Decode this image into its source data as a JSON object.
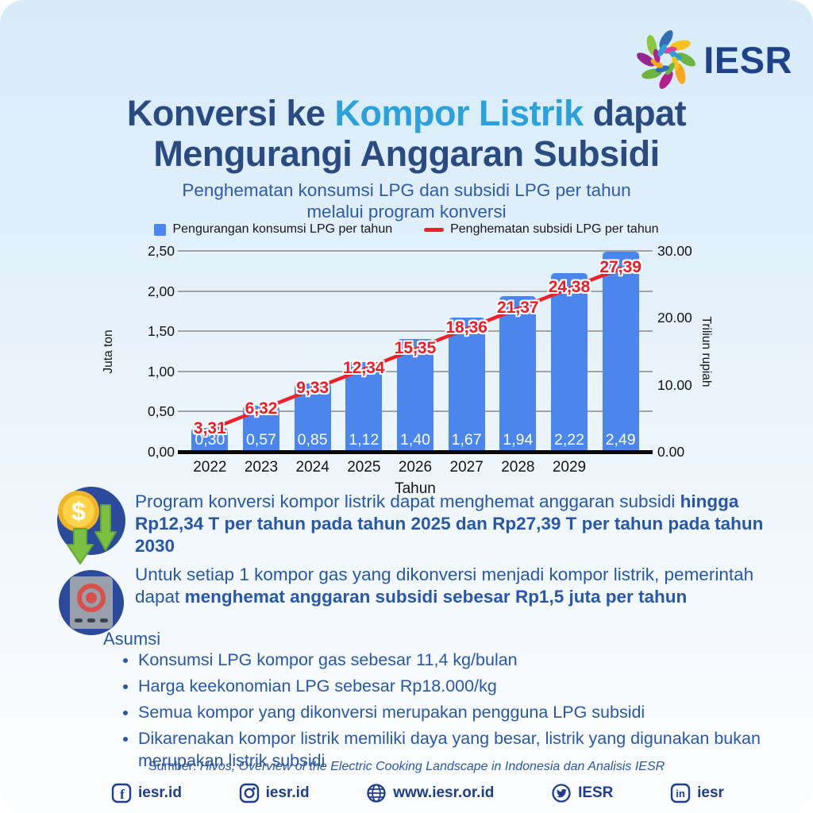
{
  "logo": {
    "name": "IESR"
  },
  "header": {
    "title_line1_pre": "Konversi ke ",
    "title_line1_highlight": "Kompor Listrik",
    "title_line1_post": " dapat",
    "title_line2": "Mengurangi Anggaran Subsidi",
    "subtitle_line1": "Penghematan konsumsi LPG dan subsidi LPG per tahun",
    "subtitle_line2": "melalui program konversi"
  },
  "chart_data": {
    "type": "bar+line",
    "categories": [
      "2022",
      "2023",
      "2024",
      "2025",
      "2026",
      "2027",
      "2028",
      "2029",
      ""
    ],
    "series": [
      {
        "name": "Pengurangan konsumsi LPG per tahun",
        "type": "bar",
        "axis": "left",
        "values": [
          0.3,
          0.57,
          0.85,
          1.12,
          1.4,
          1.67,
          1.94,
          2.22,
          2.49
        ],
        "labels": [
          "0,30",
          "0,57",
          "0,85",
          "1,12",
          "1,40",
          "1,67",
          "1,94",
          "2,22",
          "2,49"
        ],
        "color": "#4a86ee"
      },
      {
        "name": "Penghematan subsidi LPG per tahun",
        "type": "line",
        "axis": "right",
        "values": [
          3.31,
          6.32,
          9.33,
          12.34,
          15.35,
          18.36,
          21.37,
          24.38,
          27.39
        ],
        "labels": [
          "3,31",
          "6,32",
          "9,33",
          "12,34",
          "15,35",
          "18,36",
          "21,37",
          "24,38",
          "27,39"
        ],
        "color": "#ee2129"
      }
    ],
    "left_axis": {
      "title": "Juta ton",
      "ticks": [
        "0,00",
        "0,50",
        "1,00",
        "1,50",
        "2,00",
        "2,50"
      ],
      "min": 0,
      "max": 2.5
    },
    "right_axis": {
      "title": "Triliun rupiah",
      "ticks": [
        "0.00",
        "10.00",
        "20.00",
        "30.00"
      ],
      "min": 0,
      "max": 30
    },
    "x_axis": {
      "title": "Tahun"
    },
    "grid": true,
    "legend_position": "top"
  },
  "insights": [
    {
      "icon": "money-savings-icon",
      "text_regular": "Program konversi kompor listrik dapat menghemat anggaran subsidi ",
      "text_bold": "hingga Rp12,34 T per tahun pada tahun 2025 dan Rp27,39 T per tahun pada tahun 2030"
    },
    {
      "icon": "electric-stove-icon",
      "text_regular": "Untuk setiap 1 kompor gas yang dikonversi menjadi kompor listrik, pemerintah dapat ",
      "text_bold": "menghemat anggaran subsidi sebesar Rp1,5 juta per tahun"
    }
  ],
  "assumptions": {
    "heading": "Asumsi",
    "items": [
      "Konsumsi LPG kompor gas sebesar 11,4 kg/bulan",
      "Harga keekonomian LPG sebesar Rp18.000/kg",
      "Semua kompor yang dikonversi merupakan pengguna LPG subsidi",
      "Dikarenakan kompor listrik memiliki daya yang besar, listrik yang digunakan bukan merupakan listrik subsidi"
    ]
  },
  "source": {
    "prefix": "Sumber: ",
    "citation": "Hivos, Overview of the Electric Cooking Landscape in Indonesia dan Analisis IESR"
  },
  "footer": {
    "links": [
      {
        "icon": "facebook-icon",
        "label": "iesr.id"
      },
      {
        "icon": "instagram-icon",
        "label": "iesr.id"
      },
      {
        "icon": "globe-icon",
        "label": "www.iesr.or.id"
      },
      {
        "icon": "twitter-icon",
        "label": "IESR"
      },
      {
        "icon": "linkedin-icon",
        "label": "iesr"
      }
    ]
  },
  "colors": {
    "title_navy": "#2a4a82",
    "highlight_blue": "#2aa0dc",
    "body_blue": "#2857a8",
    "bar_blue": "#4a86ee",
    "line_red": "#ee2129",
    "grid_gray": "#a3a3a3",
    "footer_navy": "#1e3d8f"
  }
}
